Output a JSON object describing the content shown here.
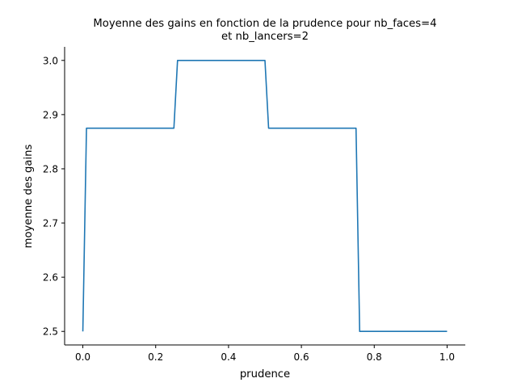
{
  "chart_data": {
    "type": "line",
    "title_lines": [
      "Moyenne des gains en fonction de la prudence pour nb_faces=4",
      "et nb_lancers=2"
    ],
    "xlabel": "prudence",
    "ylabel": "moyenne des gains",
    "xlim": [
      -0.05,
      1.05
    ],
    "ylim": [
      2.475,
      3.025
    ],
    "xticks": [
      0.0,
      0.2,
      0.4,
      0.6,
      0.8,
      1.0
    ],
    "xtick_labels": [
      "0.0",
      "0.2",
      "0.4",
      "0.6",
      "0.8",
      "1.0"
    ],
    "yticks": [
      2.5,
      2.6,
      2.7,
      2.8,
      2.9,
      3.0
    ],
    "ytick_labels": [
      "2.5",
      "2.6",
      "2.7",
      "2.8",
      "2.9",
      "3.0"
    ],
    "grid": false,
    "color": "#1f77b4",
    "series": [
      {
        "x": [
          0.0,
          0.01,
          0.25,
          0.26,
          0.5,
          0.51,
          0.75,
          0.76,
          1.0
        ],
        "y": [
          2.5,
          2.875,
          2.875,
          3.0,
          3.0,
          2.875,
          2.875,
          2.5,
          2.5
        ]
      }
    ]
  }
}
